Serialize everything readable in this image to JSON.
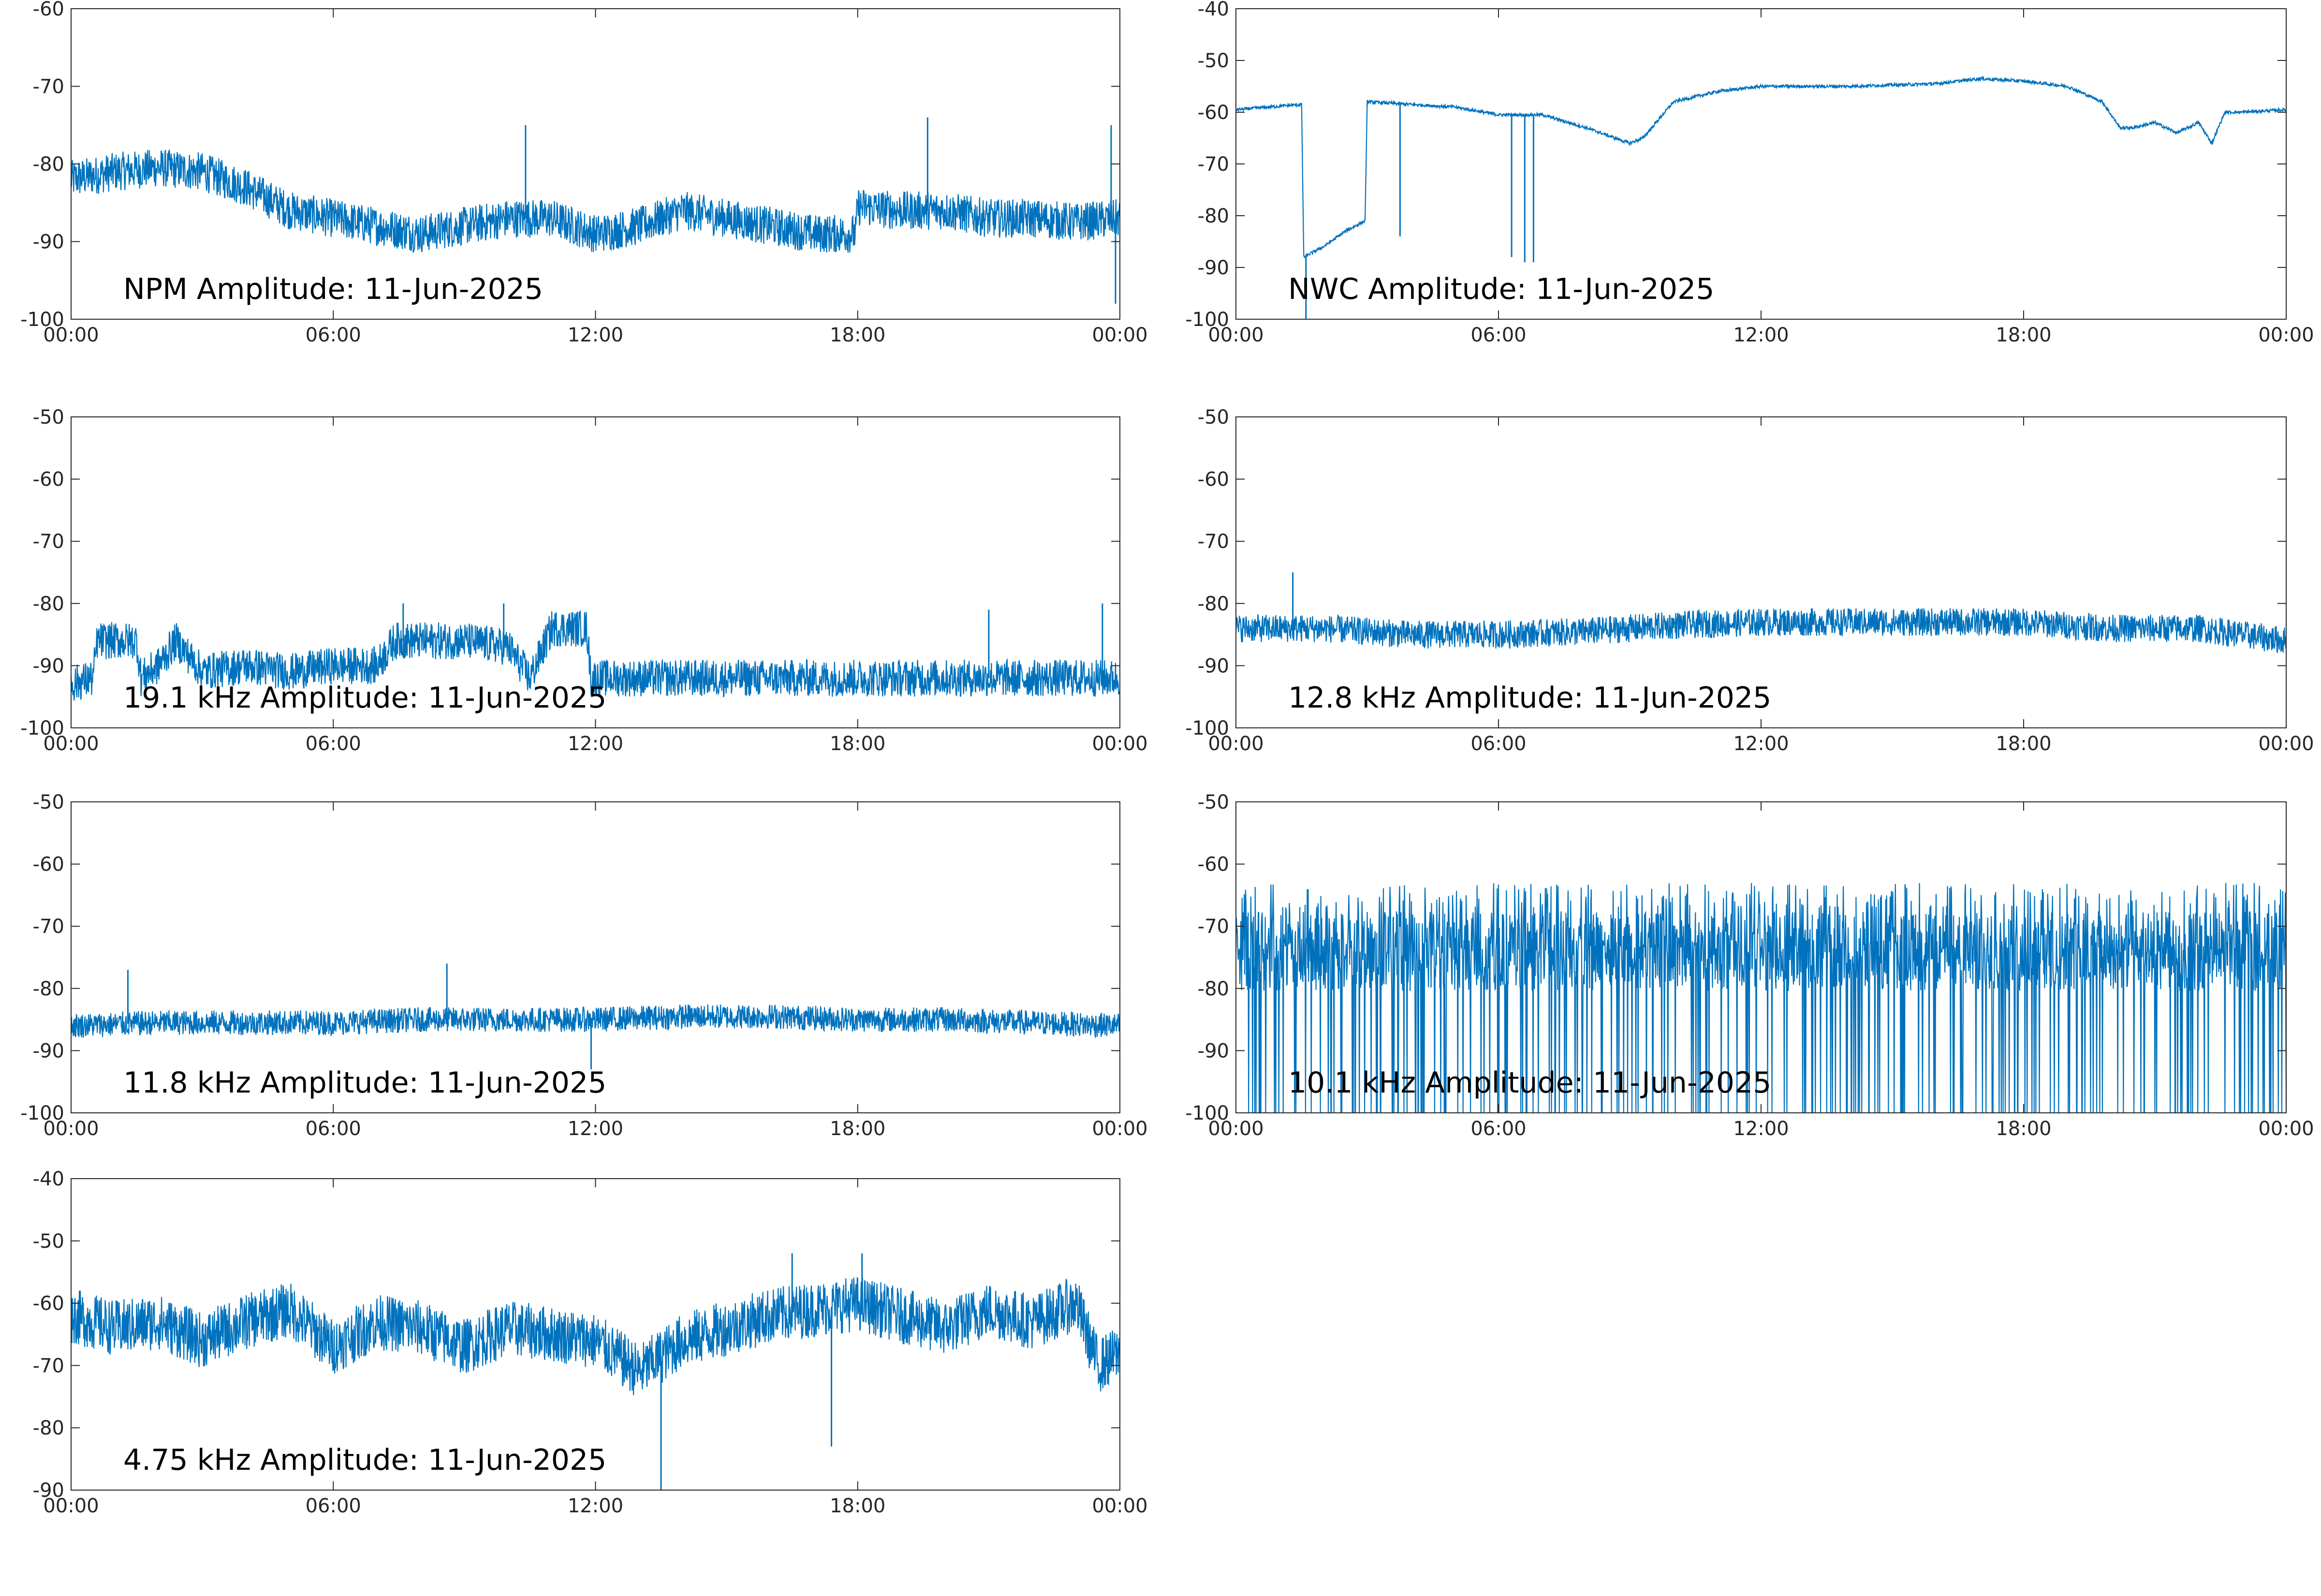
{
  "colors": {
    "series": "#0072BD",
    "axis": "#262626",
    "background": "#ffffff"
  },
  "chart_data": [
    {
      "type": "line",
      "title": "NPM Amplitude: 11-Jun-2025",
      "xlabel": "",
      "ylabel": "",
      "x_ticks": [
        "00:00",
        "06:00",
        "12:00",
        "18:00",
        "00:00"
      ],
      "xlim_hours": [
        0,
        24
      ],
      "ylim": [
        -100,
        -60
      ],
      "y_ticks": [
        -60,
        -70,
        -80,
        -90,
        -100
      ],
      "grid": false,
      "series": [
        {
          "x_hours": [
            0,
            1,
            2,
            3,
            4,
            5,
            6,
            7,
            8,
            9,
            10,
            11,
            12,
            13,
            14,
            15,
            16,
            17,
            17.95,
            18,
            19,
            20,
            21,
            22,
            23,
            24
          ],
          "values": [
            -82,
            -81,
            -80.5,
            -81,
            -83,
            -86,
            -87,
            -88,
            -89,
            -88,
            -87,
            -87,
            -89,
            -88,
            -86,
            -87,
            -88,
            -89,
            -89,
            -85.5,
            -86,
            -86,
            -87,
            -87,
            -87.5,
            -87
          ],
          "noise": 5
        }
      ],
      "spikes": [
        {
          "x_hours": 10.4,
          "y": -75
        },
        {
          "x_hours": 19.6,
          "y": -74
        },
        {
          "x_hours": 23.8,
          "y": -75
        },
        {
          "x_hours": 23.9,
          "y": -98
        }
      ]
    },
    {
      "type": "line",
      "title": "NWC Amplitude: 11-Jun-2025",
      "xlabel": "",
      "ylabel": "",
      "x_ticks": [
        "00:00",
        "06:00",
        "12:00",
        "18:00",
        "00:00"
      ],
      "xlim_hours": [
        0,
        24
      ],
      "ylim": [
        -100,
        -40
      ],
      "y_ticks": [
        -40,
        -50,
        -60,
        -70,
        -80,
        -90,
        -100
      ],
      "grid": false,
      "series": [
        {
          "x_hours": [
            0,
            1.5,
            1.55,
            2.0,
            2.5,
            2.95,
            3.0,
            4.0,
            5.0,
            6.0,
            7.0,
            8.0,
            9.0,
            9.3,
            10.0,
            11.0,
            12.0,
            14.0,
            16.0,
            17.0,
            18.0,
            19.0,
            19.8,
            20.2,
            20.5,
            21.0,
            21.5,
            22.0,
            22.3,
            22.6,
            23.0,
            24.0
          ],
          "values": [
            -59.5,
            -58.5,
            -88,
            -86,
            -83,
            -81,
            -58,
            -58.5,
            -59,
            -60.5,
            -60.5,
            -63,
            -66,
            -65,
            -58,
            -56,
            -55,
            -55,
            -54.5,
            -53.5,
            -54,
            -55,
            -58,
            -63,
            -63,
            -62,
            -64,
            -62,
            -66,
            -60,
            -60,
            -59.5
          ],
          "noise": 0.6
        }
      ],
      "spikes": [
        {
          "x_hours": 1.6,
          "y": -100
        },
        {
          "x_hours": 3.75,
          "y": -84
        },
        {
          "x_hours": 6.3,
          "y": -88
        },
        {
          "x_hours": 6.6,
          "y": -89
        },
        {
          "x_hours": 6.8,
          "y": -89
        }
      ]
    },
    {
      "type": "line",
      "title": "19.1 kHz Amplitude: 11-Jun-2025",
      "xlabel": "",
      "ylabel": "",
      "x_ticks": [
        "00:00",
        "06:00",
        "12:00",
        "18:00",
        "00:00"
      ],
      "xlim_hours": [
        0,
        24
      ],
      "ylim": [
        -100,
        -50
      ],
      "y_ticks": [
        -50,
        -60,
        -70,
        -80,
        -90,
        -100
      ],
      "grid": false,
      "series": [
        {
          "x_hours": [
            0,
            0.5,
            0.6,
            1.5,
            1.6,
            2.0,
            2.4,
            3.0,
            4.0,
            5.0,
            6.0,
            7.0,
            7.4,
            8.0,
            9.0,
            10.0,
            10.5,
            11.0,
            11.8,
            11.9,
            13.0,
            15.0,
            17.0,
            19.0,
            21.0,
            23.0,
            24.0
          ],
          "values": [
            -93,
            -92,
            -86,
            -86,
            -92,
            -90,
            -86,
            -91,
            -90,
            -91,
            -90,
            -90,
            -86,
            -86,
            -86,
            -87,
            -92,
            -84,
            -84,
            -92,
            -92,
            -92,
            -92,
            -92,
            -92,
            -92,
            -92
          ],
          "noise": 6
        }
      ],
      "spikes": [
        {
          "x_hours": 7.6,
          "y": -80
        },
        {
          "x_hours": 9.9,
          "y": -80
        },
        {
          "x_hours": 21.0,
          "y": -81
        },
        {
          "x_hours": 23.6,
          "y": -80
        }
      ]
    },
    {
      "type": "line",
      "title": "12.8 kHz Amplitude: 11-Jun-2025",
      "xlabel": "",
      "ylabel": "",
      "x_ticks": [
        "00:00",
        "06:00",
        "12:00",
        "18:00",
        "00:00"
      ],
      "xlim_hours": [
        0,
        24
      ],
      "ylim": [
        -100,
        -50
      ],
      "y_ticks": [
        -50,
        -60,
        -70,
        -80,
        -90,
        -100
      ],
      "grid": false,
      "series": [
        {
          "x_hours": [
            0,
            2,
            4,
            6,
            8,
            10,
            12,
            14,
            16,
            18,
            20,
            22,
            24
          ],
          "values": [
            -84,
            -84,
            -85,
            -85,
            -84.5,
            -83.5,
            -83,
            -83,
            -83,
            -83,
            -84,
            -84,
            -86
          ],
          "noise": 4.5
        }
      ],
      "spikes": [
        {
          "x_hours": 1.3,
          "y": -75
        }
      ]
    },
    {
      "type": "line",
      "title": "11.8 kHz Amplitude: 11-Jun-2025",
      "xlabel": "",
      "ylabel": "",
      "x_ticks": [
        "00:00",
        "06:00",
        "12:00",
        "18:00",
        "00:00"
      ],
      "xlim_hours": [
        0,
        24
      ],
      "ylim": [
        -100,
        -50
      ],
      "y_ticks": [
        -50,
        -60,
        -70,
        -80,
        -90,
        -100
      ],
      "grid": false,
      "series": [
        {
          "x_hours": [
            0,
            2,
            4,
            6,
            8,
            10,
            12,
            14,
            16,
            18,
            20,
            22,
            24
          ],
          "values": [
            -86,
            -85.5,
            -85.5,
            -85.5,
            -85,
            -85,
            -85,
            -84.5,
            -84.5,
            -85,
            -85,
            -85.5,
            -86
          ],
          "noise": 4
        }
      ],
      "spikes": [
        {
          "x_hours": 1.3,
          "y": -77
        },
        {
          "x_hours": 8.6,
          "y": -76
        },
        {
          "x_hours": 11.9,
          "y": -93
        }
      ]
    },
    {
      "type": "line",
      "title": "10.1 kHz Amplitude: 11-Jun-2025",
      "xlabel": "",
      "ylabel": "",
      "x_ticks": [
        "00:00",
        "06:00",
        "12:00",
        "18:00",
        "00:00"
      ],
      "xlim_hours": [
        0,
        24
      ],
      "ylim": [
        -100,
        -50
      ],
      "y_ticks": [
        -50,
        -60,
        -70,
        -80,
        -90,
        -100
      ],
      "grid": false,
      "series": [
        {
          "x_hours": [
            0,
            6,
            12,
            18,
            24
          ],
          "values": [
            -74,
            -74,
            -74,
            -74,
            -74
          ],
          "noise": 8,
          "dropouts_to": -100,
          "peak": -63
        }
      ],
      "spikes": []
    },
    {
      "type": "line",
      "title": "4.75 kHz Amplitude: 11-Jun-2025",
      "xlabel": "",
      "ylabel": "",
      "x_ticks": [
        "00:00",
        "06:00",
        "12:00",
        "18:00",
        "00:00"
      ],
      "xlim_hours": [
        0,
        24
      ],
      "ylim": [
        -90,
        -40
      ],
      "y_ticks": [
        -40,
        -50,
        -60,
        -70,
        -80,
        -90
      ],
      "grid": false,
      "series": [
        {
          "x_hours": [
            0,
            1,
            2,
            3,
            4,
            5,
            6,
            7,
            8,
            9,
            10,
            11,
            12,
            13,
            14,
            15,
            16,
            17,
            18,
            19,
            20,
            21,
            22,
            23,
            23.5,
            24
          ],
          "values": [
            -62,
            -64,
            -63,
            -66,
            -63,
            -61,
            -67,
            -63,
            -64,
            -67,
            -64,
            -65,
            -66,
            -71,
            -66,
            -64,
            -62,
            -61,
            -60,
            -62,
            -64,
            -61,
            -63,
            -60,
            -70,
            -68
          ],
          "noise": 9
        }
      ],
      "spikes": [
        {
          "x_hours": 13.5,
          "y": -90
        },
        {
          "x_hours": 16.5,
          "y": -52
        },
        {
          "x_hours": 18.1,
          "y": -52
        },
        {
          "x_hours": 17.4,
          "y": -83
        }
      ]
    }
  ]
}
